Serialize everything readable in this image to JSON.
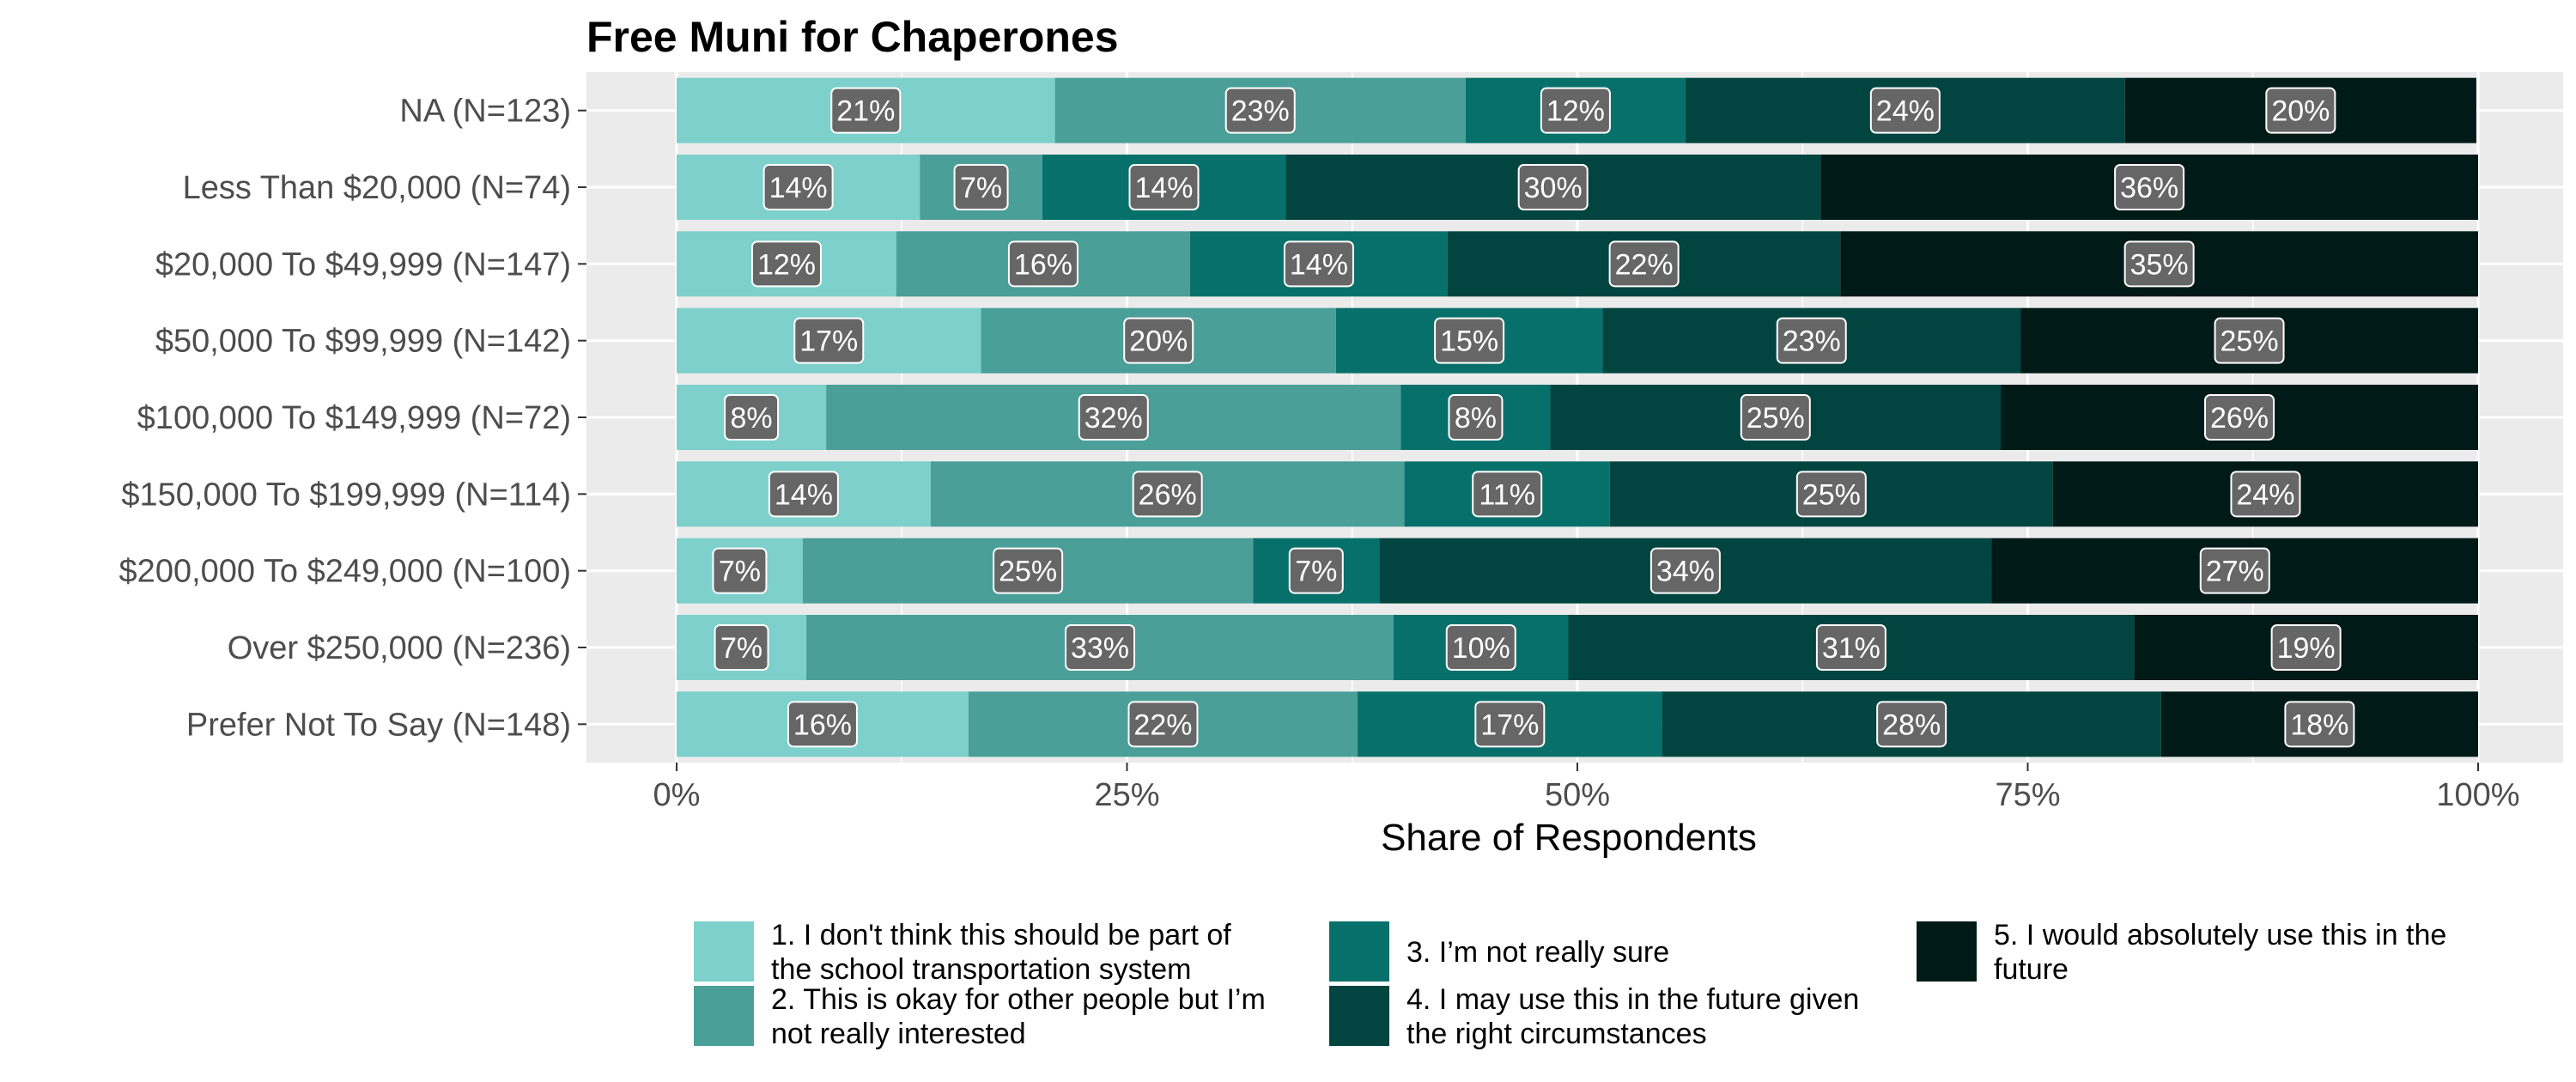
{
  "chart_data": {
    "type": "bar",
    "orientation": "horizontal",
    "stacked": true,
    "percent": true,
    "title": "Free Muni for Chaperones",
    "xlabel": "Share of Respondents",
    "ylabel": "",
    "xlim": [
      0,
      100
    ],
    "x_ticks": [
      "0%",
      "25%",
      "50%",
      "75%",
      "100%"
    ],
    "grid": true,
    "legend_position": "bottom",
    "categories": [
      "NA (N=123)",
      "Less Than $20,000 (N=74)",
      "$20,000 To $49,999 (N=147)",
      "$50,000 To $99,999 (N=142)",
      "$100,000 To $149,999 (N=72)",
      "$150,000 To $199,999 (N=114)",
      "$200,000 To $249,000 (N=100)",
      "Over $250,000 (N=236)",
      "Prefer Not To Say (N=148)"
    ],
    "series": [
      {
        "name": "1. I don't think this should be part of the school transportation system",
        "legend_lines": [
          "1. I don't think this should be part of",
          "the school transportation system"
        ],
        "color": "#7dd0cb",
        "values": [
          21,
          13.5,
          12.2,
          16.9,
          8.3,
          14.1,
          7,
          7.2,
          16.2
        ],
        "labels": [
          "21%",
          "14%",
          "12%",
          "17%",
          "8%",
          "14%",
          "7%",
          "7%",
          "16%"
        ]
      },
      {
        "name": "2. This is okay for other people but I'm not really interested",
        "legend_lines": [
          "2. This is okay for other people but I’m",
          "not really interested"
        ],
        "color": "#4a9f98",
        "values": [
          22.8,
          6.8,
          16.3,
          19.7,
          31.9,
          26.3,
          25,
          32.6,
          21.6
        ],
        "labels": [
          "23%",
          "7%",
          "16%",
          "20%",
          "32%",
          "26%",
          "25%",
          "33%",
          "22%"
        ]
      },
      {
        "name": "3. I'm not really sure",
        "legend_lines": [
          "3. I’m not really sure"
        ],
        "color": "#08706a",
        "values": [
          12.2,
          13.5,
          14.3,
          14.8,
          8.3,
          11.4,
          7,
          9.7,
          16.9
        ],
        "labels": [
          "12%",
          "14%",
          "14%",
          "15%",
          "8%",
          "11%",
          "7%",
          "10%",
          "17%"
        ]
      },
      {
        "name": "4. I may use this in the future given the right circumstances",
        "legend_lines": [
          "4. I may use this in the future given",
          "the right circumstances"
        ],
        "color": "#024440",
        "values": [
          24.4,
          29.7,
          21.8,
          23.2,
          25,
          24.6,
          34,
          31.4,
          27.7
        ],
        "labels": [
          "24%",
          "30%",
          "22%",
          "23%",
          "25%",
          "25%",
          "34%",
          "31%",
          "28%"
        ]
      },
      {
        "name": "5. I would absolutely use this in the future",
        "legend_lines": [
          "5. I would absolutely use this in the",
          "future"
        ],
        "color": "#001a17",
        "values": [
          19.5,
          36.5,
          35.4,
          25.4,
          26.5,
          23.6,
          27,
          19.1,
          17.6
        ],
        "labels": [
          "20%",
          "36%",
          "35%",
          "25%",
          "26%",
          "24%",
          "27%",
          "19%",
          "18%"
        ]
      }
    ]
  }
}
